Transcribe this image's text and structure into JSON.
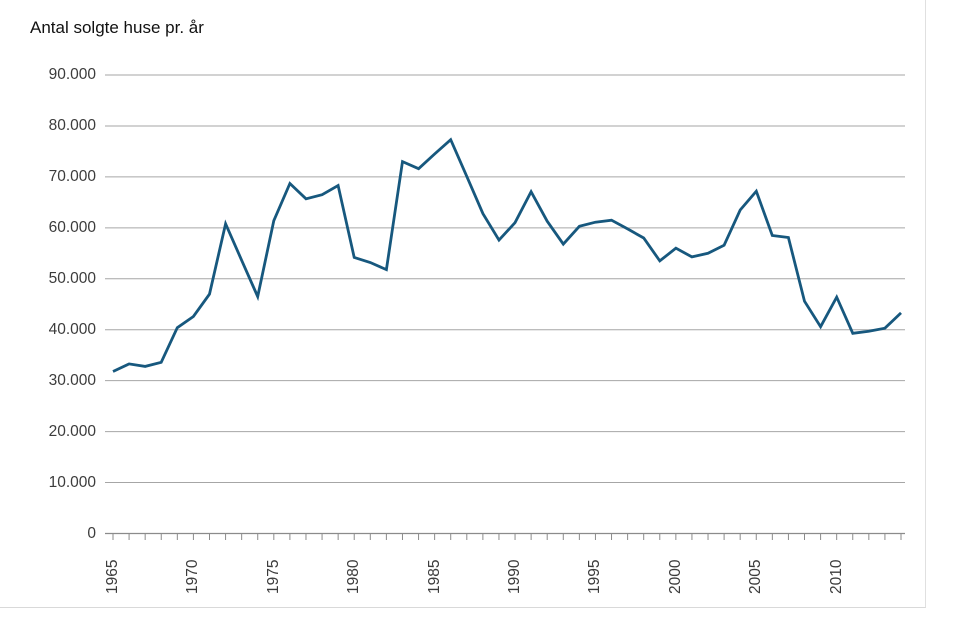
{
  "chart_data": {
    "type": "line",
    "title": "Antal solgte huse pr. år",
    "series_name": "Antal solgte huse",
    "x": [
      1965,
      1966,
      1967,
      1968,
      1969,
      1970,
      1971,
      1972,
      1973,
      1974,
      1975,
      1976,
      1977,
      1978,
      1979,
      1980,
      1981,
      1982,
      1983,
      1984,
      1985,
      1986,
      1987,
      1988,
      1989,
      1990,
      1991,
      1992,
      1993,
      1994,
      1995,
      1996,
      1997,
      1998,
      1999,
      2000,
      2001,
      2002,
      2003,
      2004,
      2005,
      2006,
      2007,
      2008,
      2009,
      2010,
      2011,
      2012,
      2013,
      2014
    ],
    "values": [
      31800,
      33300,
      32800,
      33600,
      40400,
      42600,
      47000,
      60800,
      53600,
      46500,
      61400,
      68700,
      65700,
      66500,
      68300,
      54200,
      53200,
      51800,
      73000,
      71600,
      74500,
      77300,
      70100,
      62800,
      57600,
      61000,
      67100,
      61300,
      56800,
      60300,
      61100,
      61500,
      59800,
      58000,
      53500,
      56000,
      54300,
      55000,
      56600,
      63500,
      67200,
      58500,
      58100,
      45600,
      40600,
      46400,
      39300,
      39700,
      40300,
      43300
    ],
    "xlabel": "",
    "ylabel": "",
    "ylim": [
      0,
      90000
    ],
    "grid": true,
    "legend_position": "none",
    "y_tick_labels": [
      "0",
      "10.000",
      "20.000",
      "30.000",
      "40.000",
      "50.000",
      "60.000",
      "70.000",
      "80.000",
      "90.000"
    ],
    "x_tick_labels": [
      "1965",
      "1970",
      "1975",
      "1980",
      "1985",
      "1990",
      "1995",
      "2000",
      "2005",
      "2010"
    ],
    "x_tick_label_step": 5,
    "colors": {
      "line": "#17587E",
      "gridline": "#A6A6A6",
      "axis": "#8B8B8B",
      "tick": "#8B8B8B",
      "label_text": "#3C3C3C",
      "title_text": "#111111",
      "background": "#FFFFFF",
      "frame_border": "#DCDCDC"
    }
  }
}
